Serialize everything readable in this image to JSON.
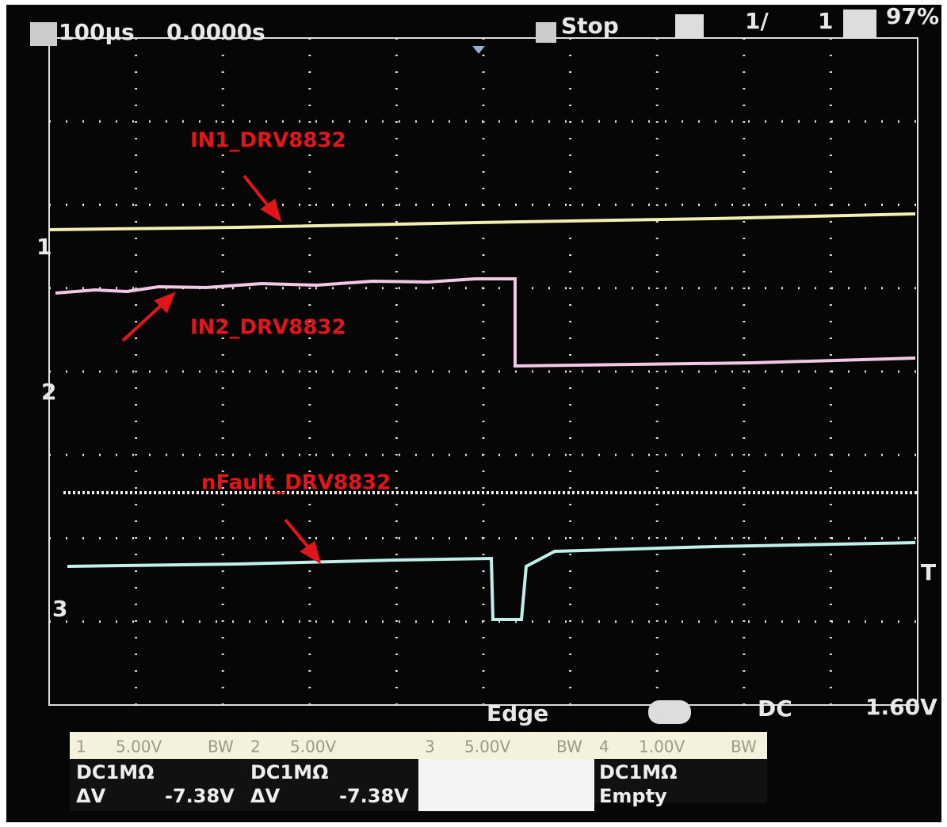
{
  "top_bar": {
    "timebase": "100μs",
    "position": "0.0000s",
    "run_state": "Stop",
    "acquisitions": "1/",
    "count": "1",
    "battery": "97%"
  },
  "channel_markers": [
    "1",
    "2",
    "3"
  ],
  "trigger_marker": "T",
  "traces": [
    {
      "label": "IN1_DRV8832"
    },
    {
      "label": "IN2_DRV8832"
    },
    {
      "label": "nFault_DRV8832"
    }
  ],
  "trigger_info": {
    "type": "Edge",
    "coupling": "DC",
    "level": "1.60V"
  },
  "channel_panel": [
    {
      "channel": "1",
      "scale": "5.00V",
      "bw": "BW",
      "coupling": "DC1MΩ",
      "measurement": "ΔV",
      "value": "-7.38V"
    },
    {
      "channel": "2",
      "scale": "5.00V",
      "coupling": "DC1MΩ",
      "measurement": "ΔV",
      "value": "-7.38V"
    },
    {
      "channel": "3",
      "scale": "5.00V",
      "bw": "BW"
    },
    {
      "channel": "4",
      "scale": "1.00V",
      "bw": "BW",
      "coupling": "DC1MΩ",
      "measurement": "Empty"
    }
  ]
}
